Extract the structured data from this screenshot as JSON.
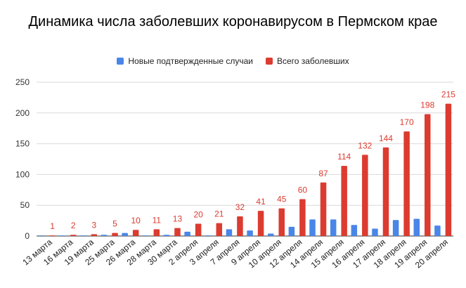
{
  "chart_data": {
    "type": "bar",
    "title": "Динамика числа заболевших коронавирусом в Пермском крае",
    "categories": [
      "13 марта",
      "16 марта",
      "19 марта",
      "25 марта",
      "26 марта",
      "28 марта",
      "30 марта",
      "2 апреля",
      "3 апреля",
      "7 апреля",
      "9 апреля",
      "10 апреля",
      "12 апреля",
      "14 апреля",
      "15 апреля",
      "16 апреля",
      "17 апреля",
      "18 апреля",
      "19 апреля",
      "20 апреля"
    ],
    "series": [
      {
        "name": "Новые подтвержденные случаи",
        "color": "#4a86e8",
        "values": [
          1,
          1,
          1,
          2,
          5,
          1,
          2,
          7,
          1,
          11,
          9,
          4,
          15,
          27,
          27,
          18,
          12,
          26,
          28,
          17
        ]
      },
      {
        "name": "Всего заболевших",
        "color": "#dc3b30",
        "values": [
          1,
          2,
          3,
          5,
          10,
          11,
          13,
          20,
          21,
          32,
          41,
          45,
          60,
          87,
          114,
          132,
          144,
          170,
          198,
          215
        ]
      }
    ],
    "data_labels_series": 1,
    "ylim": [
      0,
      250
    ],
    "yticks": [
      0,
      50,
      100,
      150,
      200,
      250
    ],
    "grid": true,
    "legend_position": "top"
  }
}
